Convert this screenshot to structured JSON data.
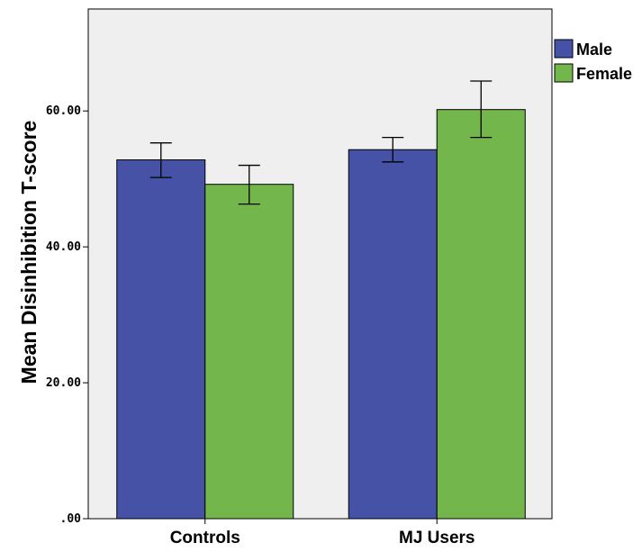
{
  "chart_data": {
    "type": "bar",
    "ylabel": "Mean Disinhibition T-score",
    "yticks": [
      ".00",
      "20.00",
      "40.00",
      "60.00"
    ],
    "ylim": [
      0,
      75
    ],
    "categories": [
      "Controls",
      "MJ Users"
    ],
    "series": [
      {
        "name": "Male",
        "color": "#4652a5",
        "values": [
          52.8,
          54.3
        ],
        "error_low": [
          50.2,
          52.5
        ],
        "error_high": [
          55.3,
          56.1
        ]
      },
      {
        "name": "Female",
        "color": "#73b64c",
        "values": [
          49.2,
          60.2
        ],
        "error_low": [
          46.3,
          56.1
        ],
        "error_high": [
          52.0,
          64.4
        ]
      }
    ],
    "legend_position": "top-right",
    "plot_background": "#efefef",
    "grid": false
  }
}
